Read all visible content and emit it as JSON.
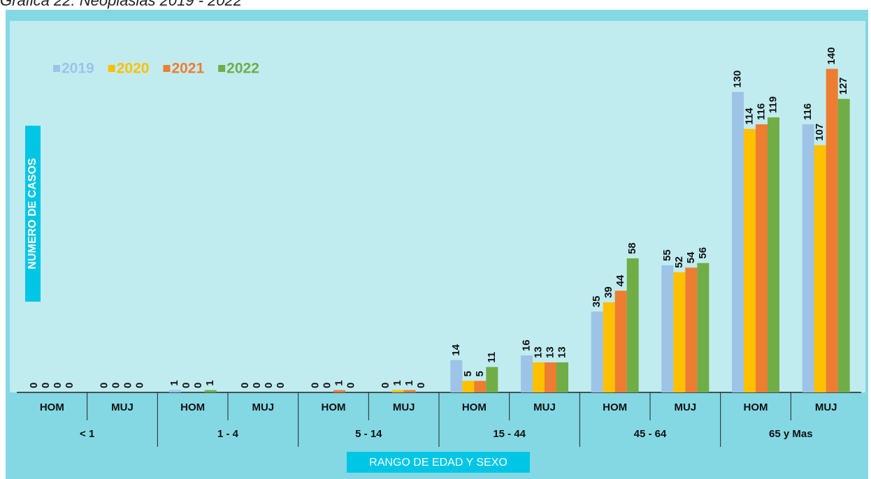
{
  "chart_data": {
    "type": "bar",
    "title": "Gráfica 22: Neoplasias 2019 - 2022",
    "x_label": "RANGO DE EDAD Y SEXO",
    "y_label": "NUMERO DE CASOS",
    "categories": [
      "HOM",
      "MUJ",
      "HOM",
      "MUJ",
      "HOM",
      "MUJ",
      "HOM",
      "MUJ",
      "HOM",
      "MUJ",
      "HOM",
      "MUJ"
    ],
    "groups": [
      "< 1",
      "1 - 4",
      "5 - 14",
      "15 - 44",
      "45 - 64",
      "65 y Mas"
    ],
    "series": [
      {
        "name": "2019",
        "color": "#9dc3e6",
        "values": [
          0,
          0,
          1,
          0,
          0,
          0,
          14,
          16,
          35,
          55,
          130,
          116
        ]
      },
      {
        "name": "2020",
        "color": "#ffc000",
        "values": [
          0,
          0,
          0,
          0,
          0,
          1,
          5,
          13,
          39,
          52,
          114,
          107
        ]
      },
      {
        "name": "2021",
        "color": "#ed7d31",
        "values": [
          0,
          0,
          0,
          0,
          1,
          1,
          5,
          13,
          44,
          54,
          116,
          140
        ]
      },
      {
        "name": "2022",
        "color": "#70ad47",
        "values": [
          0,
          0,
          1,
          0,
          0,
          0,
          11,
          13,
          58,
          56,
          119,
          127
        ]
      }
    ],
    "legend": "upper left"
  }
}
